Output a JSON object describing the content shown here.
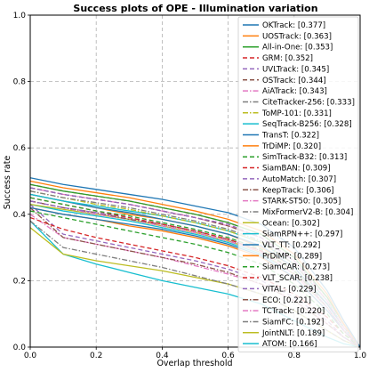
{
  "chart_data": {
    "type": "line",
    "title": "Success plots of OPE - Illumination variation",
    "xlabel": "Overlap threshold",
    "ylabel": "Success rate",
    "xlim": [
      0,
      1
    ],
    "ylim": [
      0,
      1
    ],
    "xticks": [
      "0.0",
      "0.2",
      "0.4",
      "0.6",
      "0.8",
      "1.0"
    ],
    "yticks": [
      "0.0",
      "0.2",
      "0.4",
      "0.6",
      "0.8",
      "1.0"
    ],
    "grid": true,
    "legend_position": "top-right",
    "x": [
      0,
      0.1,
      0.2,
      0.3,
      0.4,
      0.5,
      0.6,
      0.7,
      0.8,
      0.9,
      0.95,
      1.0
    ],
    "series": [
      {
        "name": "OKTrack: [0.377]",
        "color": "#1f77b4",
        "dash": "solid",
        "values": [
          0.51,
          0.49,
          0.475,
          0.46,
          0.445,
          0.425,
          0.405,
          0.37,
          0.3,
          0.17,
          0.08,
          0.0
        ]
      },
      {
        "name": "UOSTrack: [0.363]",
        "color": "#ff7f0e",
        "dash": "solid",
        "values": [
          0.5,
          0.48,
          0.465,
          0.45,
          0.43,
          0.41,
          0.385,
          0.35,
          0.28,
          0.16,
          0.07,
          0.0
        ]
      },
      {
        "name": "All-in-One: [0.353]",
        "color": "#2ca02c",
        "dash": "solid",
        "values": [
          0.49,
          0.47,
          0.455,
          0.44,
          0.42,
          0.4,
          0.375,
          0.34,
          0.27,
          0.15,
          0.07,
          0.0
        ]
      },
      {
        "name": "GRM: [0.352]",
        "color": "#d62728",
        "dash": "dashed",
        "values": [
          0.49,
          0.47,
          0.455,
          0.44,
          0.42,
          0.4,
          0.375,
          0.34,
          0.27,
          0.15,
          0.07,
          0.0
        ]
      },
      {
        "name": "UVLTrack: [0.345]",
        "color": "#9467bd",
        "dash": "dashed",
        "values": [
          0.48,
          0.46,
          0.445,
          0.43,
          0.41,
          0.39,
          0.37,
          0.33,
          0.26,
          0.15,
          0.07,
          0.0
        ]
      },
      {
        "name": "OSTrack: [0.344]",
        "color": "#8c564b",
        "dash": "dashed",
        "values": [
          0.48,
          0.46,
          0.445,
          0.43,
          0.41,
          0.39,
          0.365,
          0.33,
          0.26,
          0.15,
          0.07,
          0.0
        ]
      },
      {
        "name": "AiATrack: [0.343]",
        "color": "#e377c2",
        "dash": "dashdot",
        "values": [
          0.48,
          0.46,
          0.445,
          0.43,
          0.41,
          0.39,
          0.365,
          0.33,
          0.26,
          0.14,
          0.06,
          0.0
        ]
      },
      {
        "name": "CiteTracker-256: [0.333]",
        "color": "#7f7f7f",
        "dash": "dashdot",
        "values": [
          0.47,
          0.45,
          0.435,
          0.42,
          0.4,
          0.38,
          0.355,
          0.32,
          0.25,
          0.14,
          0.06,
          0.0
        ]
      },
      {
        "name": "ToMP-101: [0.331]",
        "color": "#bcbd22",
        "dash": "dashdot",
        "values": [
          0.47,
          0.45,
          0.43,
          0.415,
          0.395,
          0.375,
          0.35,
          0.315,
          0.25,
          0.14,
          0.06,
          0.0
        ]
      },
      {
        "name": "SeqTrack-B256: [0.328]",
        "color": "#17becf",
        "dash": "solid",
        "values": [
          0.46,
          0.44,
          0.425,
          0.41,
          0.395,
          0.375,
          0.35,
          0.315,
          0.25,
          0.14,
          0.06,
          0.0
        ]
      },
      {
        "name": "TransT: [0.322]",
        "color": "#1f77b4",
        "dash": "solid",
        "values": [
          0.46,
          0.44,
          0.42,
          0.405,
          0.385,
          0.365,
          0.34,
          0.305,
          0.24,
          0.13,
          0.06,
          0.0
        ]
      },
      {
        "name": "TrDiMP: [0.320]",
        "color": "#ff7f0e",
        "dash": "solid",
        "values": [
          0.46,
          0.44,
          0.42,
          0.4,
          0.385,
          0.365,
          0.34,
          0.3,
          0.24,
          0.13,
          0.06,
          0.0
        ]
      },
      {
        "name": "SimTrack-B32: [0.313]",
        "color": "#2ca02c",
        "dash": "dashed",
        "values": [
          0.45,
          0.43,
          0.41,
          0.395,
          0.375,
          0.355,
          0.33,
          0.295,
          0.23,
          0.13,
          0.06,
          0.0
        ]
      },
      {
        "name": "SiamBAN: [0.309]",
        "color": "#d62728",
        "dash": "dashed",
        "values": [
          0.45,
          0.43,
          0.41,
          0.39,
          0.37,
          0.35,
          0.325,
          0.29,
          0.23,
          0.13,
          0.06,
          0.0
        ]
      },
      {
        "name": "AutoMatch: [0.307]",
        "color": "#9467bd",
        "dash": "dashed",
        "values": [
          0.44,
          0.42,
          0.405,
          0.39,
          0.37,
          0.35,
          0.325,
          0.29,
          0.23,
          0.12,
          0.05,
          0.0
        ]
      },
      {
        "name": "KeepTrack: [0.306]",
        "color": "#8c564b",
        "dash": "dashdot",
        "values": [
          0.44,
          0.42,
          0.405,
          0.385,
          0.37,
          0.35,
          0.325,
          0.29,
          0.23,
          0.12,
          0.05,
          0.0
        ]
      },
      {
        "name": "STARK-ST50: [0.305]",
        "color": "#e377c2",
        "dash": "dashdot",
        "values": [
          0.44,
          0.42,
          0.4,
          0.385,
          0.365,
          0.345,
          0.32,
          0.285,
          0.22,
          0.12,
          0.05,
          0.0
        ]
      },
      {
        "name": "MixFormerV2-B: [0.304]",
        "color": "#7f7f7f",
        "dash": "dashdot",
        "values": [
          0.44,
          0.42,
          0.4,
          0.385,
          0.365,
          0.345,
          0.32,
          0.285,
          0.22,
          0.12,
          0.05,
          0.0
        ]
      },
      {
        "name": "Ocean: [0.302]",
        "color": "#bcbd22",
        "dash": "solid",
        "values": [
          0.43,
          0.415,
          0.4,
          0.385,
          0.365,
          0.345,
          0.32,
          0.285,
          0.22,
          0.12,
          0.05,
          0.0
        ]
      },
      {
        "name": "SiamRPN++: [0.297]",
        "color": "#17becf",
        "dash": "solid",
        "values": [
          0.43,
          0.41,
          0.395,
          0.38,
          0.36,
          0.34,
          0.315,
          0.28,
          0.22,
          0.12,
          0.05,
          0.0
        ]
      },
      {
        "name": "VLT_TT: [0.292]",
        "color": "#1f77b4",
        "dash": "solid",
        "values": [
          0.42,
          0.4,
          0.385,
          0.37,
          0.355,
          0.335,
          0.31,
          0.275,
          0.21,
          0.11,
          0.05,
          0.0
        ]
      },
      {
        "name": "PrDiMP: [0.289]",
        "color": "#ff7f0e",
        "dash": "solid",
        "values": [
          0.42,
          0.4,
          0.385,
          0.365,
          0.35,
          0.33,
          0.305,
          0.27,
          0.21,
          0.11,
          0.05,
          0.0
        ]
      },
      {
        "name": "SiamCAR: [0.273]",
        "color": "#2ca02c",
        "dash": "dashed",
        "values": [
          0.41,
          0.39,
          0.37,
          0.35,
          0.33,
          0.31,
          0.285,
          0.25,
          0.19,
          0.1,
          0.04,
          0.0
        ]
      },
      {
        "name": "VLT_SCAR: [0.238]",
        "color": "#d62728",
        "dash": "dashed",
        "values": [
          0.39,
          0.355,
          0.33,
          0.31,
          0.29,
          0.27,
          0.245,
          0.21,
          0.16,
          0.09,
          0.04,
          0.0
        ]
      },
      {
        "name": "VITAL: [0.229]",
        "color": "#9467bd",
        "dash": "dashed",
        "values": [
          0.43,
          0.34,
          0.32,
          0.3,
          0.28,
          0.26,
          0.235,
          0.2,
          0.15,
          0.08,
          0.03,
          0.0
        ]
      },
      {
        "name": "ECO: [0.221]",
        "color": "#8c564b",
        "dash": "dashdot",
        "values": [
          0.42,
          0.33,
          0.31,
          0.29,
          0.27,
          0.25,
          0.225,
          0.19,
          0.14,
          0.07,
          0.03,
          0.0
        ]
      },
      {
        "name": "TCTrack: [0.220]",
        "color": "#e377c2",
        "dash": "dashdot",
        "values": [
          0.4,
          0.33,
          0.31,
          0.29,
          0.27,
          0.245,
          0.22,
          0.19,
          0.14,
          0.07,
          0.03,
          0.0
        ]
      },
      {
        "name": "SiamFC: [0.192]",
        "color": "#7f7f7f",
        "dash": "dashdot",
        "values": [
          0.38,
          0.3,
          0.28,
          0.26,
          0.24,
          0.215,
          0.19,
          0.16,
          0.11,
          0.05,
          0.02,
          0.0
        ]
      },
      {
        "name": "JointNLT: [0.189]",
        "color": "#bcbd22",
        "dash": "solid",
        "values": [
          0.36,
          0.28,
          0.26,
          0.245,
          0.23,
          0.21,
          0.19,
          0.16,
          0.11,
          0.05,
          0.02,
          0.0
        ]
      },
      {
        "name": "ATOM: [0.166]",
        "color": "#17becf",
        "dash": "solid",
        "values": [
          0.38,
          0.28,
          0.25,
          0.225,
          0.2,
          0.18,
          0.16,
          0.13,
          0.08,
          0.03,
          0.01,
          0.0
        ]
      }
    ]
  }
}
